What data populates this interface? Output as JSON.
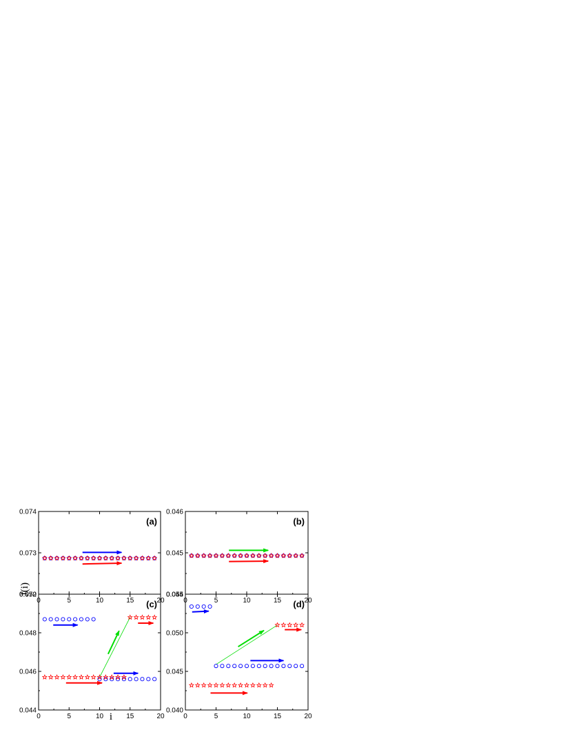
{
  "figure": {
    "ylabel": "J(i)",
    "xlabel": "i"
  },
  "chart_data": [
    {
      "type": "scatter",
      "panel_label": "(a)",
      "xlim": [
        0,
        20
      ],
      "ylim": [
        0.072,
        0.074
      ],
      "xticks": [
        0,
        5,
        10,
        15,
        20
      ],
      "yticks": [
        0.072,
        0.073,
        0.074
      ],
      "ytick_labels": [
        "0.072",
        "0.073",
        "0.074"
      ],
      "show_x_tick_labels": true,
      "show_y_tick_labels": true,
      "series": [
        {
          "marker": "circle",
          "color": "#0000ff",
          "x": [
            1,
            2,
            3,
            4,
            5,
            6,
            7,
            8,
            9,
            10,
            11,
            12,
            13,
            14,
            15,
            16,
            17,
            18,
            19
          ],
          "y": [
            0.07287,
            0.07287,
            0.07287,
            0.07287,
            0.07287,
            0.07287,
            0.07287,
            0.07287,
            0.07287,
            0.07287,
            0.07287,
            0.07287,
            0.07287,
            0.07287,
            0.07287,
            0.07287,
            0.07287,
            0.07287,
            0.07287
          ]
        },
        {
          "marker": "star",
          "color": "#ff0000",
          "x": [
            1,
            2,
            3,
            4,
            5,
            6,
            7,
            8,
            9,
            10,
            11,
            12,
            13,
            14,
            15,
            16,
            17,
            18,
            19
          ],
          "y": [
            0.07287,
            0.07287,
            0.07287,
            0.07287,
            0.07287,
            0.07287,
            0.07287,
            0.07287,
            0.07287,
            0.07287,
            0.07287,
            0.07287,
            0.07287,
            0.07287,
            0.07287,
            0.07287,
            0.07287,
            0.07287,
            0.07287
          ]
        }
      ],
      "connectors": [],
      "arrows": [
        {
          "color": "#0000ff",
          "from": [
            7.2,
            0.07301
          ],
          "to": [
            13.6,
            0.07301
          ]
        },
        {
          "color": "#ff0000",
          "from": [
            7.2,
            0.07273
          ],
          "to": [
            13.6,
            0.07275
          ]
        }
      ]
    },
    {
      "type": "scatter",
      "panel_label": "(b)",
      "xlim": [
        0,
        20
      ],
      "ylim": [
        0.044,
        0.046
      ],
      "xticks": [
        0,
        5,
        10,
        15,
        20
      ],
      "yticks": [
        0.044,
        0.045,
        0.046
      ],
      "ytick_labels": [
        "0.044",
        "0.045",
        "0.046"
      ],
      "show_x_tick_labels": true,
      "show_y_tick_labels": true,
      "series": [
        {
          "marker": "circle",
          "color": "#0000ff",
          "x": [
            1,
            2,
            3,
            4,
            5,
            6,
            7,
            8,
            9,
            10,
            11,
            12,
            13,
            14,
            15,
            16,
            17,
            18,
            19
          ],
          "y": [
            0.04493,
            0.04493,
            0.04493,
            0.04493,
            0.04493,
            0.04493,
            0.04493,
            0.04493,
            0.04493,
            0.04493,
            0.04493,
            0.04493,
            0.04493,
            0.04493,
            0.04493,
            0.04493,
            0.04493,
            0.04493,
            0.04493
          ]
        },
        {
          "marker": "star",
          "color": "#ff0000",
          "x": [
            1,
            2,
            3,
            4,
            5,
            6,
            7,
            8,
            9,
            10,
            11,
            12,
            13,
            14,
            15,
            16,
            17,
            18,
            19
          ],
          "y": [
            0.04493,
            0.04493,
            0.04493,
            0.04493,
            0.04493,
            0.04493,
            0.04493,
            0.04493,
            0.04493,
            0.04493,
            0.04493,
            0.04493,
            0.04493,
            0.04493,
            0.04493,
            0.04493,
            0.04493,
            0.04493,
            0.04493
          ]
        }
      ],
      "connectors": [],
      "arrows": [
        {
          "color": "#00dd00",
          "from": [
            7.1,
            0.04506
          ],
          "to": [
            13.5,
            0.04506
          ]
        },
        {
          "color": "#ff0000",
          "from": [
            7.1,
            0.04479
          ],
          "to": [
            13.5,
            0.0448
          ]
        }
      ]
    },
    {
      "type": "scatter",
      "panel_label": "(c)",
      "xlim": [
        0,
        20
      ],
      "ylim": [
        0.044,
        0.05
      ],
      "xticks": [
        0,
        5,
        10,
        15,
        20
      ],
      "yticks": [
        0.044,
        0.046,
        0.048,
        0.05
      ],
      "ytick_labels": [
        "0.044",
        "0.046",
        "0.048",
        "0.050"
      ],
      "show_x_tick_labels": true,
      "show_y_tick_labels": true,
      "series": [
        {
          "marker": "circle",
          "color": "#0000ff",
          "x": [
            1,
            2,
            3,
            4,
            5,
            6,
            7,
            8,
            9
          ],
          "y": [
            0.0487,
            0.0487,
            0.0487,
            0.0487,
            0.0487,
            0.0487,
            0.0487,
            0.0487,
            0.0487
          ]
        },
        {
          "marker": "circle",
          "color": "#0000ff",
          "x": [
            10,
            11,
            12,
            13,
            14,
            15,
            16,
            17,
            18,
            19
          ],
          "y": [
            0.0456,
            0.0456,
            0.0456,
            0.0456,
            0.0456,
            0.0456,
            0.0456,
            0.0456,
            0.0456,
            0.0456
          ]
        },
        {
          "marker": "star",
          "color": "#ff0000",
          "x": [
            1,
            2,
            3,
            4,
            5,
            6,
            7,
            8,
            9,
            10,
            11,
            12,
            13,
            14
          ],
          "y": [
            0.0457,
            0.0457,
            0.0457,
            0.0457,
            0.0457,
            0.0457,
            0.0457,
            0.0457,
            0.0457,
            0.0457,
            0.0457,
            0.0457,
            0.0457,
            0.0457
          ]
        },
        {
          "marker": "star",
          "color": "#ff0000",
          "x": [
            15,
            16,
            17,
            18,
            19
          ],
          "y": [
            0.0488,
            0.0488,
            0.0488,
            0.0488,
            0.0488
          ]
        }
      ],
      "connectors": [
        {
          "color": "#00dd00",
          "from": [
            10,
            0.0457
          ],
          "to": [
            15,
            0.0488
          ]
        }
      ],
      "arrows": [
        {
          "color": "#0000ff",
          "from": [
            2.4,
            0.0484
          ],
          "to": [
            6.4,
            0.0484
          ]
        },
        {
          "color": "#ff0000",
          "from": [
            4.5,
            0.0454
          ],
          "to": [
            10.4,
            0.0454
          ]
        },
        {
          "color": "#0000ff",
          "from": [
            12.3,
            0.0459
          ],
          "to": [
            16.3,
            0.0459
          ]
        },
        {
          "color": "#ff0000",
          "from": [
            16.3,
            0.0485
          ],
          "to": [
            18.8,
            0.0485
          ]
        },
        {
          "color": "#00dd00",
          "from": [
            11.4,
            0.0469
          ],
          "to": [
            13.2,
            0.0481
          ]
        }
      ]
    },
    {
      "type": "scatter",
      "panel_label": "(d)",
      "xlim": [
        0,
        20
      ],
      "ylim": [
        0.04,
        0.055
      ],
      "xticks": [
        0,
        5,
        10,
        15,
        20
      ],
      "yticks": [
        0.04,
        0.045,
        0.05,
        0.055
      ],
      "ytick_labels": [
        "0.040",
        "0.045",
        "0.050",
        "0.055"
      ],
      "show_x_tick_labels": true,
      "show_y_tick_labels": true,
      "series": [
        {
          "marker": "circle",
          "color": "#0000ff",
          "x": [
            1,
            2,
            3,
            4
          ],
          "y": [
            0.0534,
            0.0534,
            0.0534,
            0.0534
          ]
        },
        {
          "marker": "circle",
          "color": "#0000ff",
          "x": [
            5,
            6,
            7,
            8,
            9,
            10,
            11,
            12,
            13,
            14,
            15,
            16,
            17,
            18,
            19
          ],
          "y": [
            0.0457,
            0.0457,
            0.0457,
            0.0457,
            0.0457,
            0.0457,
            0.0457,
            0.0457,
            0.0457,
            0.0457,
            0.0457,
            0.0457,
            0.0457,
            0.0457,
            0.0457
          ]
        },
        {
          "marker": "star",
          "color": "#ff0000",
          "x": [
            1,
            2,
            3,
            4,
            5,
            6,
            7,
            8,
            9,
            10,
            11,
            12,
            13,
            14
          ],
          "y": [
            0.0432,
            0.0432,
            0.0432,
            0.0432,
            0.0432,
            0.0432,
            0.0432,
            0.0432,
            0.0432,
            0.0432,
            0.0432,
            0.0432,
            0.0432,
            0.0432
          ]
        },
        {
          "marker": "star",
          "color": "#ff0000",
          "x": [
            15,
            16,
            17,
            18,
            19
          ],
          "y": [
            0.051,
            0.051,
            0.051,
            0.051,
            0.051
          ]
        }
      ],
      "connectors": [
        {
          "color": "#00dd00",
          "from": [
            5,
            0.0459
          ],
          "to": [
            15,
            0.051
          ]
        }
      ],
      "arrows": [
        {
          "color": "#0000ff",
          "from": [
            1.1,
            0.0527
          ],
          "to": [
            3.8,
            0.0528
          ]
        },
        {
          "color": "#ff0000",
          "from": [
            4.1,
            0.0422
          ],
          "to": [
            10.1,
            0.0422
          ]
        },
        {
          "color": "#0000ff",
          "from": [
            10.6,
            0.0464
          ],
          "to": [
            16.0,
            0.0464
          ]
        },
        {
          "color": "#ff0000",
          "from": [
            16.2,
            0.0504
          ],
          "to": [
            18.9,
            0.0504
          ]
        },
        {
          "color": "#00dd00",
          "from": [
            8.6,
            0.0482
          ],
          "to": [
            12.8,
            0.0503
          ]
        }
      ]
    }
  ]
}
